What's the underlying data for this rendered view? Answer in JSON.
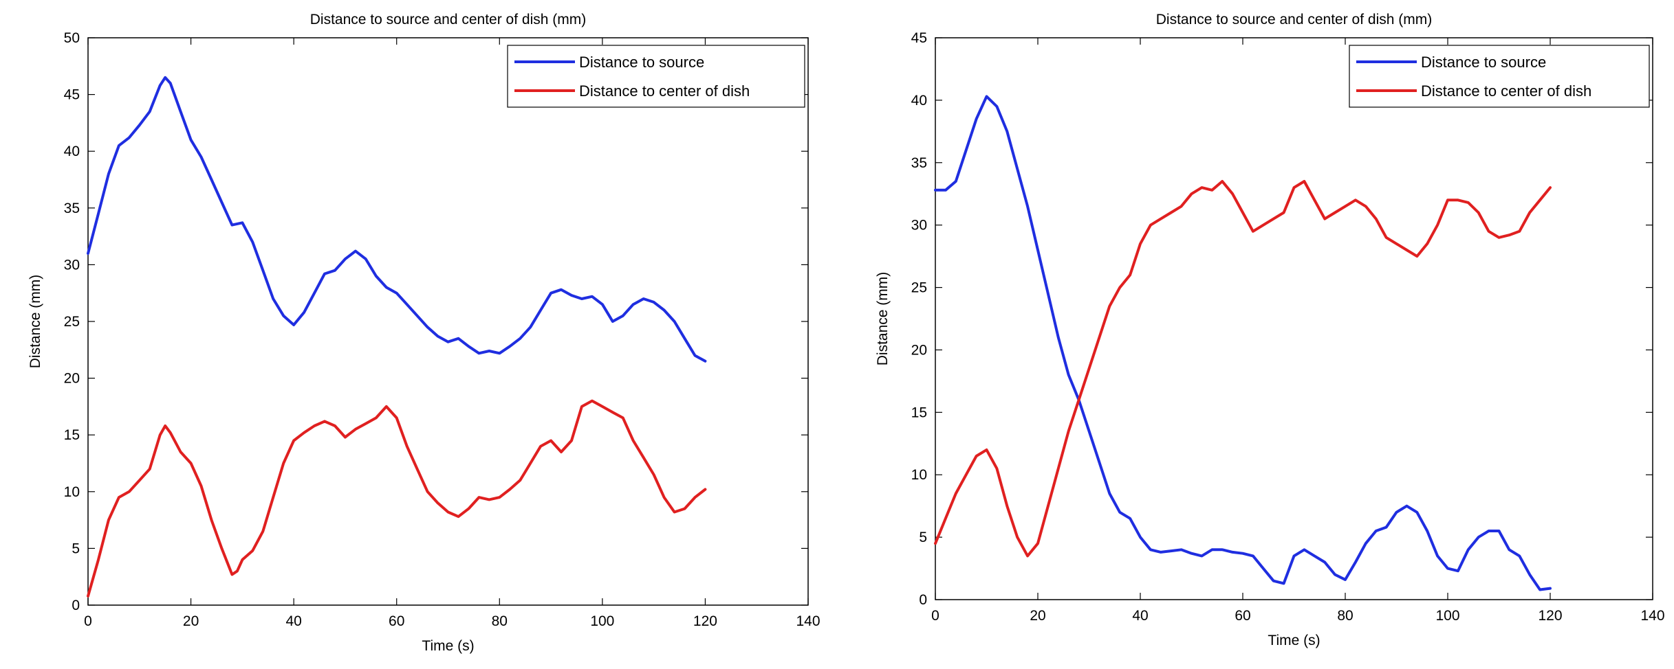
{
  "chart_data": [
    {
      "type": "line",
      "title": "Distance to source and center of dish (mm)",
      "xlabel": "Time (s)",
      "ylabel": "Distance (mm)",
      "xlim": [
        0,
        140
      ],
      "ylim": [
        0,
        50
      ],
      "xticks": [
        "0",
        "20",
        "40",
        "60",
        "80",
        "100",
        "120",
        "140"
      ],
      "yticks": [
        "0",
        "5",
        "10",
        "15",
        "20",
        "25",
        "30",
        "35",
        "40",
        "45",
        "50"
      ],
      "grid": false,
      "legend_position": "top-right",
      "series": [
        {
          "name": "Distance to source",
          "color": "#1f2ee0",
          "x": [
            0,
            2,
            4,
            6,
            8,
            10,
            12,
            14,
            15,
            16,
            18,
            20,
            22,
            24,
            26,
            28,
            30,
            32,
            34,
            36,
            38,
            40,
            42,
            44,
            46,
            48,
            50,
            52,
            54,
            56,
            58,
            60,
            62,
            64,
            66,
            68,
            70,
            72,
            74,
            76,
            78,
            80,
            82,
            84,
            86,
            88,
            90,
            92,
            94,
            96,
            98,
            100,
            102,
            104,
            106,
            108,
            110,
            112,
            114,
            116,
            118,
            120
          ],
          "y": [
            31.0,
            34.5,
            38.0,
            40.5,
            41.2,
            42.3,
            43.5,
            45.8,
            46.5,
            46.0,
            43.5,
            41.0,
            39.5,
            37.5,
            35.5,
            33.5,
            33.7,
            32.0,
            29.5,
            27.0,
            25.5,
            24.7,
            25.8,
            27.5,
            29.2,
            29.5,
            30.5,
            31.2,
            30.5,
            29.0,
            28.0,
            27.5,
            26.5,
            25.5,
            24.5,
            23.7,
            23.2,
            23.5,
            22.8,
            22.2,
            22.4,
            22.2,
            22.8,
            23.5,
            24.5,
            26.0,
            27.5,
            27.8,
            27.3,
            27.0,
            27.2,
            26.5,
            25.0,
            25.5,
            26.5,
            27.0,
            26.7,
            26.0,
            25.0,
            23.5,
            22.0,
            21.5
          ]
        },
        {
          "name": "Distance to center of dish",
          "color": "#e02020",
          "x": [
            0,
            2,
            4,
            6,
            8,
            10,
            12,
            14,
            15,
            16,
            18,
            20,
            22,
            24,
            26,
            28,
            29,
            30,
            32,
            34,
            36,
            38,
            40,
            42,
            44,
            46,
            48,
            50,
            52,
            54,
            56,
            58,
            60,
            62,
            64,
            66,
            68,
            70,
            72,
            74,
            76,
            78,
            80,
            82,
            84,
            86,
            88,
            90,
            92,
            94,
            96,
            98,
            100,
            102,
            104,
            106,
            108,
            110,
            112,
            114,
            116,
            118,
            120
          ],
          "y": [
            0.8,
            4.0,
            7.5,
            9.5,
            10.0,
            11.0,
            12.0,
            15.0,
            15.8,
            15.2,
            13.5,
            12.5,
            10.5,
            7.5,
            5.0,
            2.7,
            3.0,
            4.0,
            4.8,
            6.5,
            9.5,
            12.5,
            14.5,
            15.2,
            15.8,
            16.2,
            15.8,
            14.8,
            15.5,
            16.0,
            16.5,
            17.5,
            16.5,
            14.0,
            12.0,
            10.0,
            9.0,
            8.2,
            7.8,
            8.5,
            9.5,
            9.3,
            9.5,
            10.2,
            11.0,
            12.5,
            14.0,
            14.5,
            13.5,
            14.5,
            17.5,
            18.0,
            17.5,
            17.0,
            16.5,
            14.5,
            13.0,
            11.5,
            9.5,
            8.2,
            8.5,
            9.5,
            10.2
          ]
        }
      ]
    },
    {
      "type": "line",
      "title": "Distance to source and center of dish (mm)",
      "xlabel": "Time (s)",
      "ylabel": "Distance (mm)",
      "xlim": [
        0,
        140
      ],
      "ylim": [
        0,
        45
      ],
      "xticks": [
        "0",
        "20",
        "40",
        "60",
        "80",
        "100",
        "120",
        "140"
      ],
      "yticks": [
        "0",
        "5",
        "10",
        "15",
        "20",
        "25",
        "30",
        "35",
        "40",
        "45"
      ],
      "grid": false,
      "legend_position": "top-right",
      "series": [
        {
          "name": "Distance to source",
          "color": "#1f2ee0",
          "x": [
            0,
            2,
            4,
            6,
            8,
            10,
            12,
            14,
            16,
            18,
            20,
            22,
            24,
            26,
            28,
            30,
            32,
            34,
            36,
            38,
            40,
            42,
            44,
            46,
            48,
            50,
            52,
            54,
            56,
            58,
            60,
            62,
            64,
            66,
            68,
            70,
            72,
            74,
            76,
            78,
            80,
            82,
            84,
            86,
            88,
            90,
            92,
            94,
            96,
            98,
            100,
            102,
            104,
            106,
            108,
            110,
            112,
            114,
            116,
            118,
            120
          ],
          "y": [
            32.8,
            32.8,
            33.5,
            36.0,
            38.5,
            40.3,
            39.5,
            37.5,
            34.5,
            31.5,
            28.0,
            24.5,
            21.0,
            18.0,
            16.0,
            13.5,
            11.0,
            8.5,
            7.0,
            6.5,
            5.0,
            4.0,
            3.8,
            3.9,
            4.0,
            3.7,
            3.5,
            4.0,
            4.0,
            3.8,
            3.7,
            3.5,
            2.5,
            1.5,
            1.3,
            3.5,
            4.0,
            3.5,
            3.0,
            2.0,
            1.6,
            3.0,
            4.5,
            5.5,
            5.8,
            7.0,
            7.5,
            7.0,
            5.5,
            3.5,
            2.5,
            2.3,
            4.0,
            5.0,
            5.5,
            5.5,
            4.0,
            3.5,
            2.0,
            0.8,
            0.9
          ]
        },
        {
          "name": "Distance to center of dish",
          "color": "#e02020",
          "x": [
            0,
            2,
            4,
            6,
            8,
            10,
            12,
            14,
            16,
            18,
            20,
            22,
            24,
            26,
            28,
            30,
            32,
            34,
            36,
            38,
            40,
            42,
            44,
            46,
            48,
            50,
            52,
            54,
            56,
            58,
            60,
            62,
            64,
            66,
            68,
            70,
            72,
            74,
            76,
            78,
            80,
            82,
            84,
            86,
            88,
            90,
            92,
            94,
            96,
            98,
            100,
            102,
            104,
            106,
            108,
            110,
            112,
            114,
            116,
            118,
            120
          ],
          "y": [
            4.5,
            6.5,
            8.5,
            10.0,
            11.5,
            12.0,
            10.5,
            7.5,
            5.0,
            3.5,
            4.5,
            7.5,
            10.5,
            13.5,
            16.0,
            18.5,
            21.0,
            23.5,
            25.0,
            26.0,
            28.5,
            30.0,
            30.5,
            31.0,
            31.5,
            32.5,
            33.0,
            32.8,
            33.5,
            32.5,
            31.0,
            29.5,
            30.0,
            30.5,
            31.0,
            33.0,
            33.5,
            32.0,
            30.5,
            31.0,
            31.5,
            32.0,
            31.5,
            30.5,
            29.0,
            28.5,
            28.0,
            27.5,
            28.5,
            30.0,
            32.0,
            32.0,
            31.8,
            31.0,
            29.5,
            29.0,
            29.2,
            29.5,
            31.0,
            32.0,
            33.0
          ]
        }
      ]
    }
  ]
}
